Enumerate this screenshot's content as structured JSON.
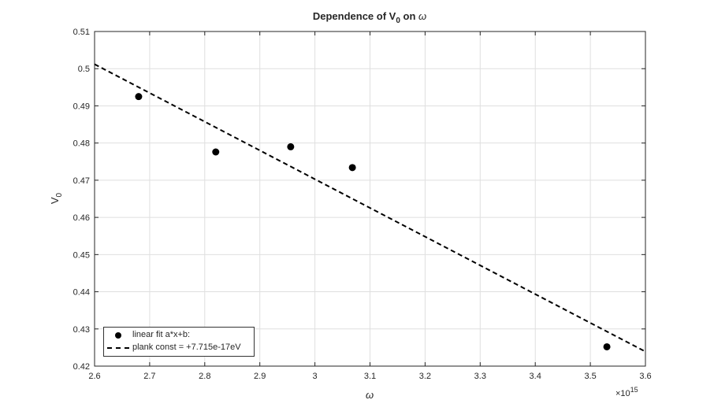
{
  "chart_data": {
    "type": "scatter",
    "title": "Dependence of V",
    "title_sub": "0",
    "title_tail": " on ",
    "title_symbol": "ω",
    "xlabel": "ω",
    "ylabel": "V",
    "ylabel_sub": "0",
    "x_exponent_base": "×10",
    "x_exponent_power": "15",
    "xlim": [
      2.6,
      3.6
    ],
    "ylim": [
      0.42,
      0.51
    ],
    "x_ticks": [
      2.6,
      2.7,
      2.8,
      2.9,
      3.0,
      3.1,
      3.2,
      3.3,
      3.4,
      3.5,
      3.6
    ],
    "x_tick_labels": [
      "2.6",
      "2.7",
      "2.8",
      "2.9",
      "3",
      "3.1",
      "3.2",
      "3.3",
      "3.4",
      "3.5",
      "3.6"
    ],
    "y_ticks": [
      0.42,
      0.43,
      0.44,
      0.45,
      0.46,
      0.47,
      0.48,
      0.49,
      0.5,
      0.51
    ],
    "y_tick_labels": [
      "0.42",
      "0.43",
      "0.44",
      "0.45",
      "0.46",
      "0.47",
      "0.48",
      "0.49",
      "0.5",
      "0.51"
    ],
    "grid": true,
    "legend_position": "bottom-left",
    "series": [
      {
        "name": "linear fit a*x+b:",
        "kind": "points",
        "color": "#000000",
        "x": [
          2.68,
          2.82,
          2.956,
          3.068,
          3.53
        ],
        "y": [
          0.4925,
          0.4776,
          0.479,
          0.4734,
          0.4252
        ]
      },
      {
        "name": "plank const = +7.715e-17eV",
        "kind": "dashed-line",
        "color": "#000000",
        "x": [
          2.6,
          3.6
        ],
        "y": [
          0.5012,
          0.4239
        ]
      }
    ]
  }
}
